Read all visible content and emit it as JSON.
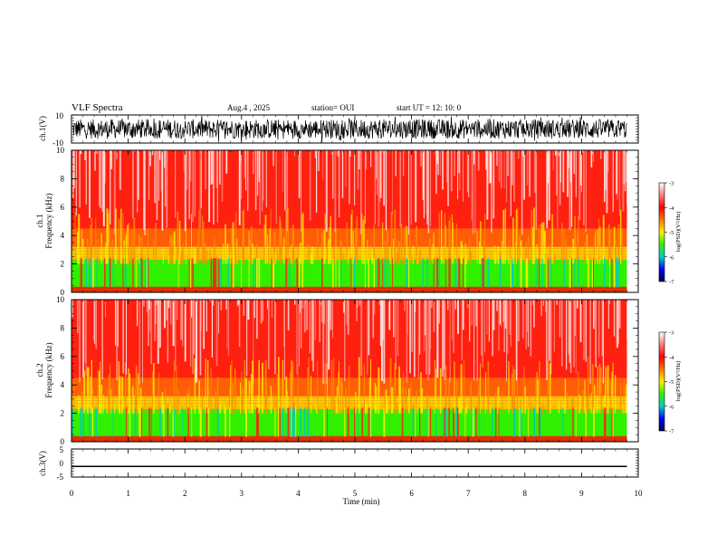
{
  "header": {
    "title": "VLF Spectra",
    "date": "Aug.4  , 2025",
    "station": "station= OUI",
    "start": "start  UT  =   12: 10: 0"
  },
  "chart_data": [
    {
      "type": "line",
      "name": "ch1-waveform",
      "ylabel": "ch.1(V)",
      "ylim": [
        -10,
        10
      ],
      "yticks": [
        "10",
        "-10"
      ],
      "xlim": [
        0,
        10
      ]
    },
    {
      "type": "heatmap",
      "name": "ch1-spectrogram",
      "ylabel": "ch.1\nFrequency  (kHz)",
      "ylabel_top": "ch.1",
      "ylabel_bottom": "Frequency  (kHz)",
      "ylim": [
        0,
        10
      ],
      "yticks": [
        "0",
        "2",
        "4",
        "6",
        "8",
        "10"
      ],
      "xlim": [
        0,
        9.8
      ],
      "colorbar": {
        "label": "log(PSD)(V²/Hz)",
        "range": [
          -7,
          -3
        ],
        "ticks": [
          "-3",
          "-4",
          "-5",
          "-6",
          "-7"
        ]
      }
    },
    {
      "type": "heatmap",
      "name": "ch2-spectrogram",
      "ylabel_top": "ch.2",
      "ylabel_bottom": "Frequency  (kHz)",
      "ylim": [
        0,
        10
      ],
      "yticks": [
        "0",
        "2",
        "4",
        "6",
        "8",
        "10"
      ],
      "xlim": [
        0,
        9.8
      ],
      "colorbar": {
        "label": "log(PSD)(V²/Hz)",
        "range": [
          -7,
          -3
        ],
        "ticks": [
          "-3",
          "-4",
          "-5",
          "-6",
          "-7"
        ]
      }
    },
    {
      "type": "line",
      "name": "ch3-waveform",
      "ylabel": "ch.3(V)",
      "ylim": [
        -5,
        5
      ],
      "yticks": [
        "5",
        "0",
        "-5"
      ],
      "x": [
        0,
        9.8
      ],
      "y": [
        -1.2,
        -1.2
      ],
      "xlim": [
        0,
        10
      ]
    }
  ],
  "xaxis": {
    "label": "Time  (min)",
    "ticks": [
      "0",
      "1",
      "2",
      "3",
      "4",
      "5",
      "6",
      "7",
      "8",
      "9",
      "10"
    ],
    "range": [
      0,
      10
    ]
  },
  "colors": {
    "red": "#ff2010",
    "orange": "#ff9000",
    "yellow": "#ffee00",
    "green": "#30f000",
    "cyan": "#00c8c8",
    "blue": "#0000ff"
  }
}
